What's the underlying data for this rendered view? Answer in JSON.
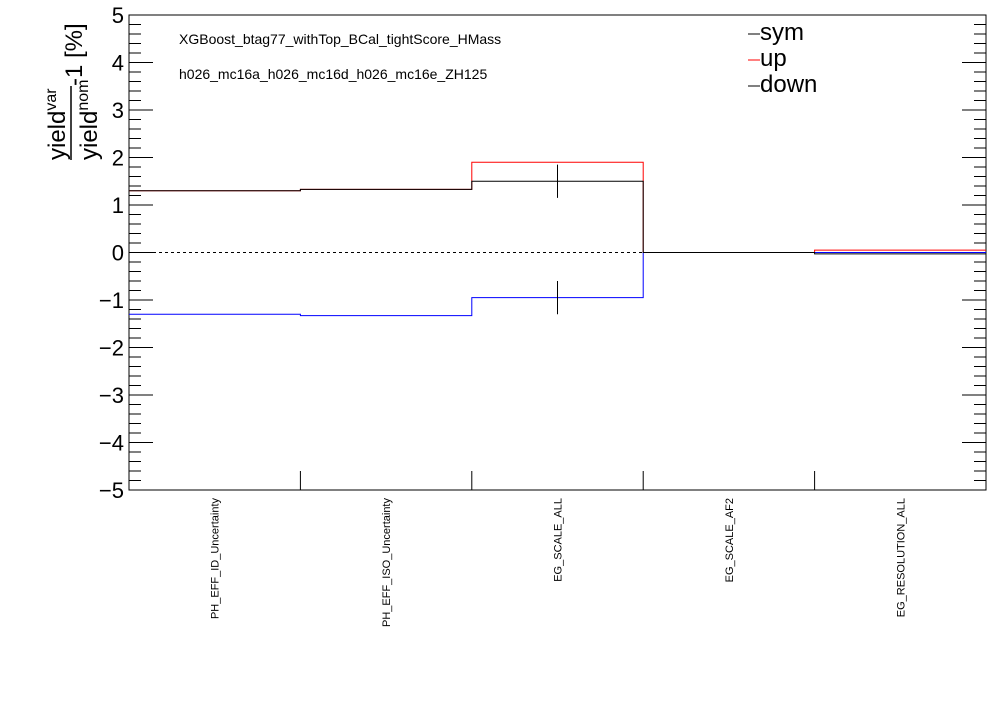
{
  "chart_data": {
    "type": "line",
    "style": "histogram-steps",
    "annotations": [
      "XGBoost_btag77_withTop_BCal_tightScore_HMass",
      "h026_mc16a_h026_mc16d_h026_mc16e_ZH125"
    ],
    "ylabel_num": "yield",
    "ylabel_num_sup": "var",
    "ylabel_den": "yield",
    "ylabel_den_sup": "nom",
    "ylabel_suffix": "-1 [%]",
    "ylim": [
      -5,
      5
    ],
    "yticks": [
      "5",
      "4",
      "3",
      "2",
      "1",
      "0",
      "−1",
      "−2",
      "−3",
      "−4",
      "−5"
    ],
    "categories": [
      "PH_EFF_ID_Uncertainty",
      "PH_EFF_ISO_Uncertainty",
      "EG_SCALE_ALL",
      "EG_SCALE_AF2",
      "EG_RESOLUTION_ALL"
    ],
    "series": [
      {
        "name": "sym",
        "color": "#000000",
        "values": [
          1.3,
          1.33,
          1.5,
          0.0,
          -0.03
        ],
        "errors": [
          0,
          0,
          0.35,
          0,
          0
        ]
      },
      {
        "name": "up",
        "color": "#ff0000",
        "values": [
          1.3,
          1.33,
          1.9,
          0.0,
          0.05
        ]
      },
      {
        "name": "down",
        "color": "#0000ff",
        "values": [
          -1.3,
          -1.33,
          -0.95,
          0.0,
          0.0
        ]
      }
    ],
    "reference_line": 0,
    "legend_position": "top-right"
  }
}
